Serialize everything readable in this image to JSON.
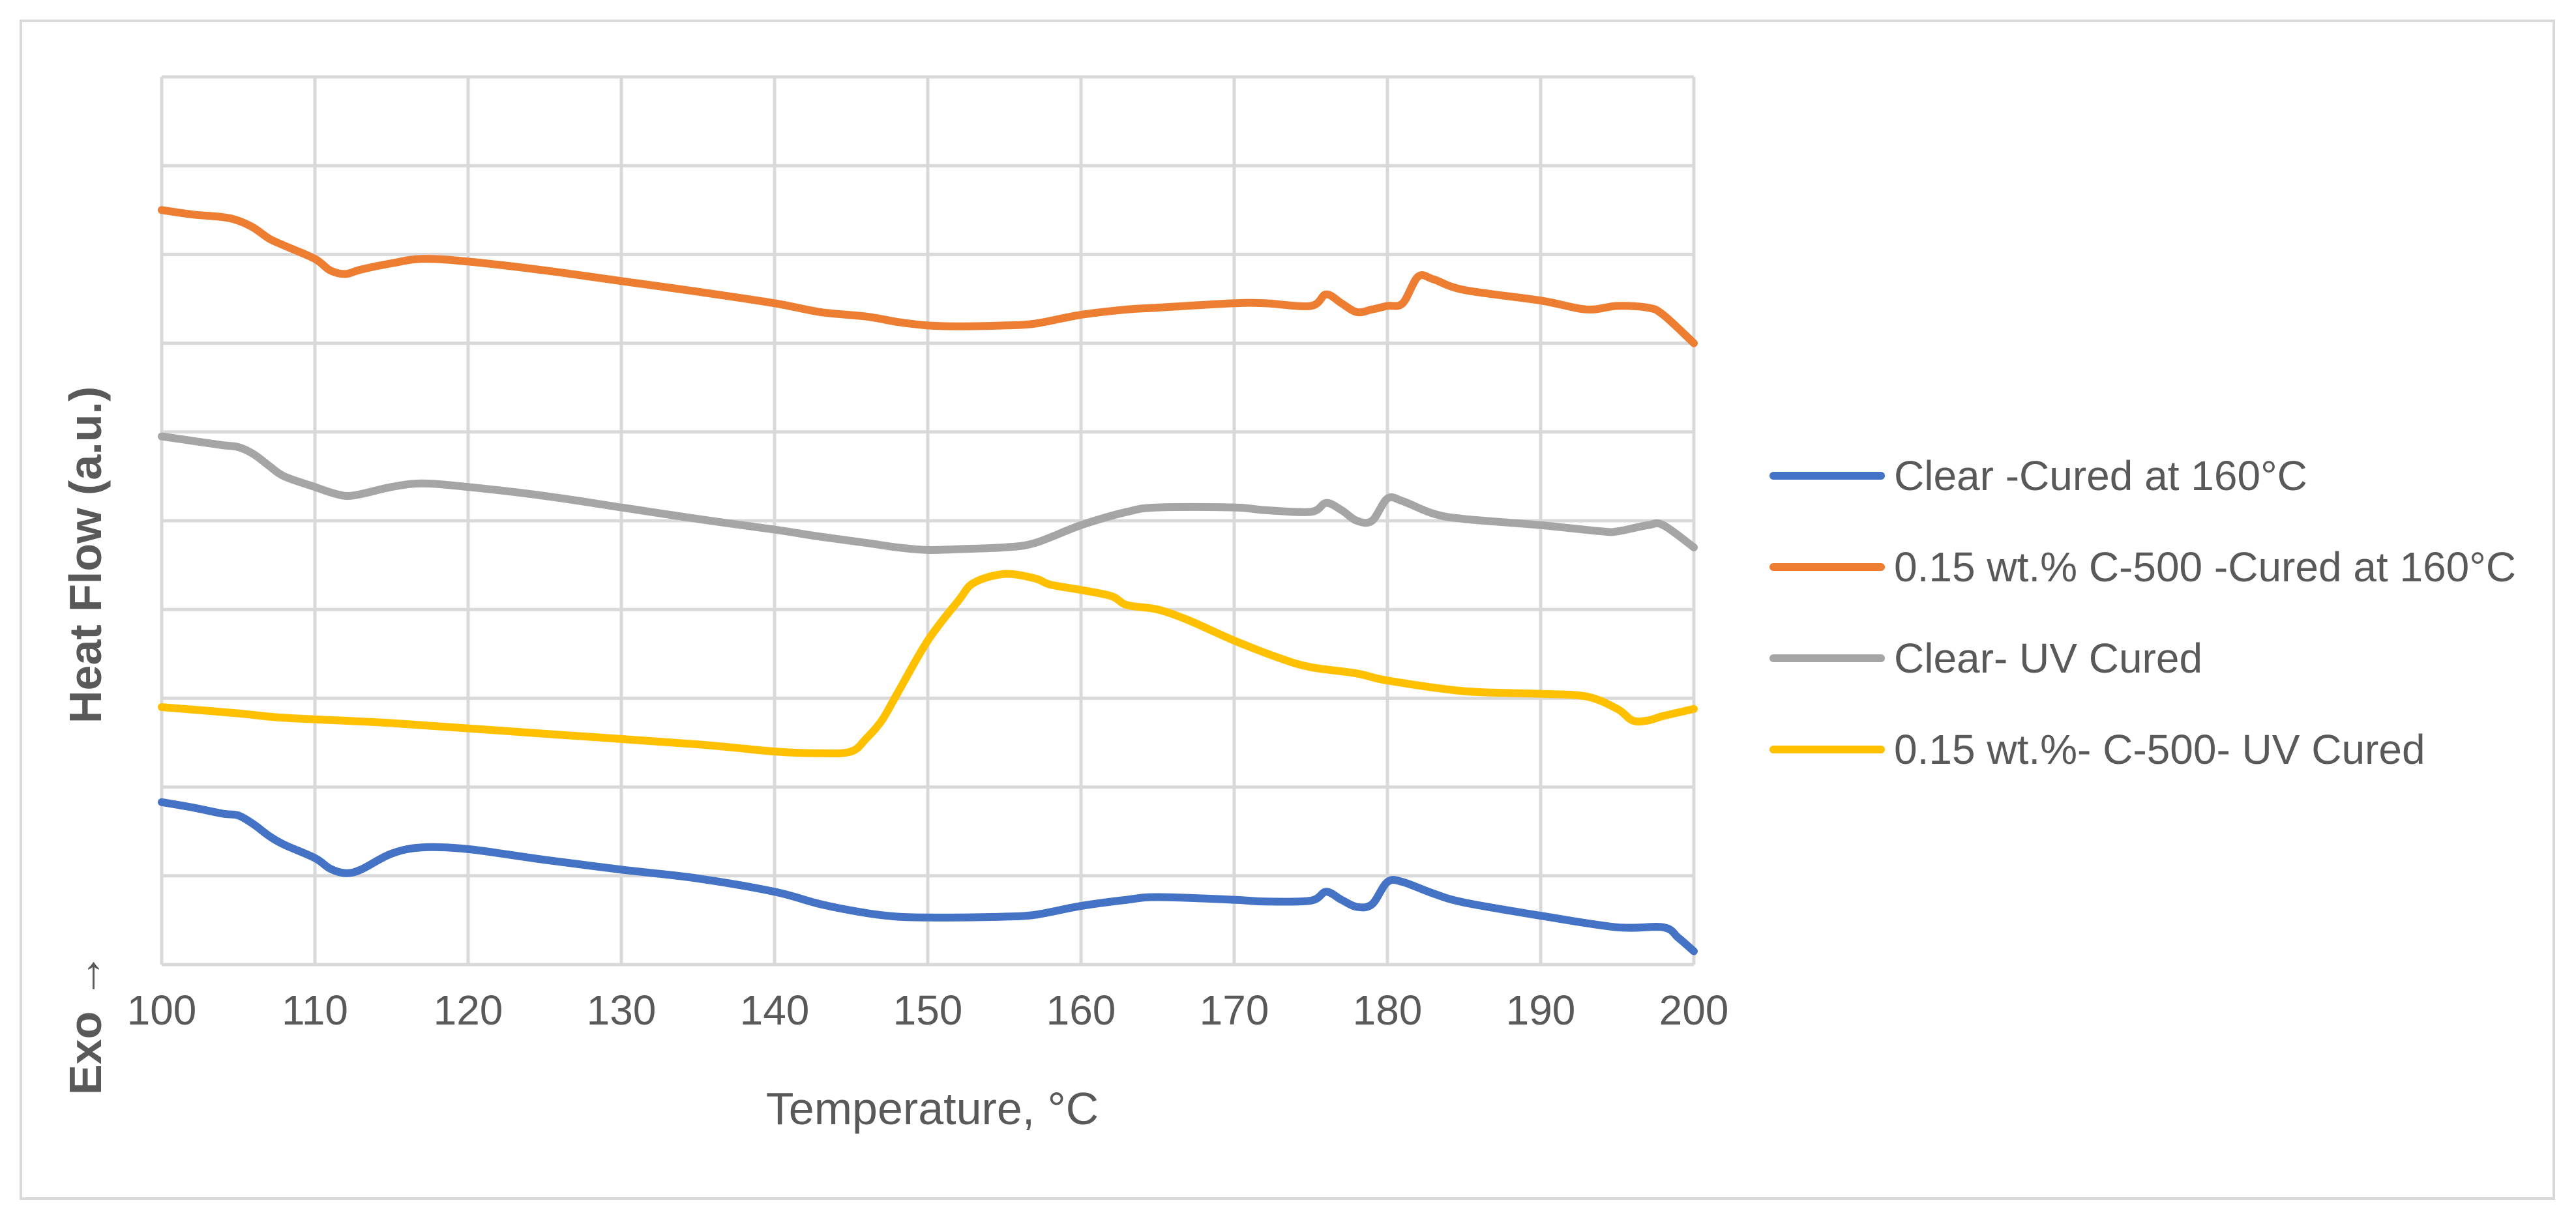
{
  "chart_data": {
    "type": "line",
    "title": "",
    "xlabel": "Temperature, °C",
    "ylabel_main": "Heat Flow (a.u.)",
    "ylabel_exo": "Exo →",
    "xlim": [
      100,
      200
    ],
    "ylim": [
      0,
      10
    ],
    "x_ticks": [
      100,
      110,
      120,
      130,
      140,
      150,
      160,
      170,
      180,
      190,
      200
    ],
    "y_gridlines": [
      0,
      1,
      2,
      3,
      4,
      5,
      6,
      7,
      8,
      9,
      10
    ],
    "grid": true,
    "legend_position": "right",
    "series": [
      {
        "name": "Clear -Cured at 160°C",
        "color": "#4472C4",
        "x": [
          100,
          102,
          104,
          105,
          106,
          107,
          108,
          110,
          111,
          112,
          113,
          115,
          117,
          120,
          125,
          130,
          135,
          140,
          143,
          146,
          148,
          150,
          152,
          155,
          157,
          160,
          163,
          165,
          170,
          172,
          175,
          176,
          177,
          178,
          179,
          180,
          181,
          183,
          185,
          190,
          195,
          198,
          199,
          200
        ],
        "y": [
          1.83,
          1.77,
          1.7,
          1.68,
          1.58,
          1.45,
          1.35,
          1.2,
          1.08,
          1.03,
          1.07,
          1.25,
          1.32,
          1.3,
          1.18,
          1.07,
          0.97,
          0.82,
          0.68,
          0.58,
          0.54,
          0.53,
          0.53,
          0.54,
          0.56,
          0.66,
          0.73,
          0.76,
          0.73,
          0.71,
          0.72,
          0.82,
          0.73,
          0.65,
          0.68,
          0.93,
          0.93,
          0.8,
          0.7,
          0.55,
          0.42,
          0.42,
          0.3,
          0.15
        ]
      },
      {
        "name": "0.15 wt.% C-500 -Cured at 160°C",
        "color": "#ED7D31",
        "x": [
          100,
          102,
          104,
          105,
          106,
          107,
          108,
          110,
          111,
          112,
          113,
          115,
          117,
          120,
          125,
          130,
          135,
          140,
          143,
          146,
          148,
          150,
          152,
          155,
          157,
          160,
          163,
          165,
          170,
          172,
          175,
          176,
          177,
          178,
          179,
          180,
          181,
          182,
          183,
          185,
          190,
          193,
          195,
          197,
          198,
          200
        ],
        "y": [
          8.5,
          8.45,
          8.42,
          8.38,
          8.3,
          8.18,
          8.1,
          7.95,
          7.82,
          7.78,
          7.83,
          7.9,
          7.95,
          7.92,
          7.82,
          7.7,
          7.58,
          7.45,
          7.35,
          7.3,
          7.24,
          7.2,
          7.19,
          7.2,
          7.22,
          7.32,
          7.38,
          7.4,
          7.45,
          7.45,
          7.42,
          7.55,
          7.45,
          7.35,
          7.38,
          7.42,
          7.45,
          7.75,
          7.72,
          7.6,
          7.48,
          7.38,
          7.42,
          7.4,
          7.32,
          7.0
        ]
      },
      {
        "name": "Clear- UV Cured",
        "color": "#A5A5A5",
        "x": [
          100,
          102,
          104,
          105,
          106,
          107,
          108,
          110,
          111,
          112,
          113,
          115,
          117,
          120,
          125,
          130,
          135,
          140,
          143,
          146,
          148,
          150,
          152,
          155,
          157,
          160,
          163,
          165,
          170,
          172,
          175,
          176,
          177,
          178,
          179,
          180,
          181,
          183,
          185,
          190,
          194,
          195,
          197,
          198,
          200
        ],
        "y": [
          5.95,
          5.9,
          5.85,
          5.83,
          5.75,
          5.62,
          5.5,
          5.38,
          5.32,
          5.28,
          5.3,
          5.38,
          5.42,
          5.38,
          5.28,
          5.15,
          5.02,
          4.9,
          4.82,
          4.75,
          4.7,
          4.67,
          4.68,
          4.7,
          4.75,
          4.95,
          5.1,
          5.15,
          5.15,
          5.12,
          5.1,
          5.2,
          5.12,
          5.0,
          5.0,
          5.25,
          5.22,
          5.08,
          5.02,
          4.95,
          4.88,
          4.88,
          4.95,
          4.95,
          4.7
        ]
      },
      {
        "name": "0.15 wt.%- C-500- UV Cured",
        "color": "#FFC000",
        "x": [
          100,
          105,
          108,
          115,
          125,
          135,
          140,
          143,
          145,
          146,
          147,
          148,
          150,
          152,
          153,
          155,
          157,
          158,
          160,
          162,
          163,
          165,
          167,
          170,
          173,
          175,
          178,
          180,
          185,
          190,
          193,
          195,
          196,
          197,
          198,
          200
        ],
        "y": [
          2.9,
          2.83,
          2.78,
          2.72,
          2.6,
          2.48,
          2.4,
          2.38,
          2.4,
          2.55,
          2.75,
          3.05,
          3.65,
          4.1,
          4.3,
          4.4,
          4.35,
          4.28,
          4.22,
          4.15,
          4.05,
          4.0,
          3.88,
          3.65,
          3.45,
          3.35,
          3.28,
          3.2,
          3.08,
          3.05,
          3.02,
          2.88,
          2.75,
          2.75,
          2.8,
          2.88
        ]
      }
    ]
  }
}
